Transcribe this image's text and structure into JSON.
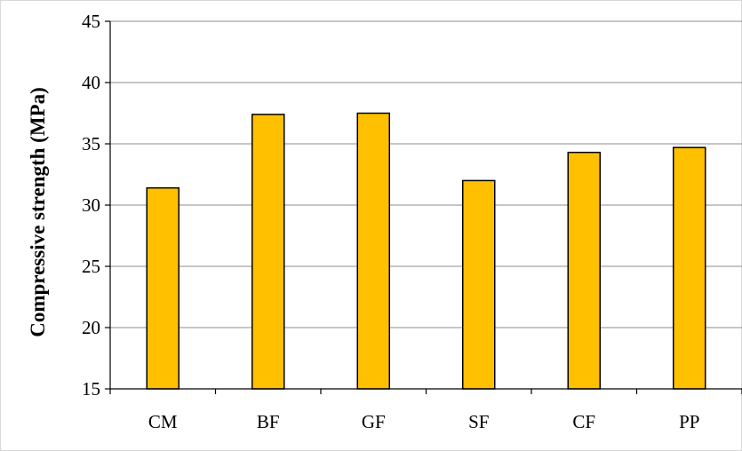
{
  "chart_data": {
    "type": "bar",
    "title": "",
    "xlabel": "",
    "ylabel": "Compressive strength (MPa)",
    "categories": [
      "CM",
      "BF",
      "GF",
      "SF",
      "CF",
      "PP"
    ],
    "values": [
      31.4,
      37.4,
      37.5,
      32.0,
      34.3,
      34.7
    ],
    "ylim": [
      15,
      45
    ],
    "yticks": [
      15,
      20,
      25,
      30,
      35,
      40,
      45
    ],
    "ytick_labels": [
      "15",
      "20",
      "25",
      "30",
      "35",
      "40",
      "45"
    ],
    "grid": true,
    "legend": "none",
    "colors": {
      "bar_fill": "#FFC000",
      "bar_stroke": "#000000",
      "gridline": "#8c8c8c",
      "axis": "#000000",
      "frame": "#d9d9d9"
    }
  }
}
